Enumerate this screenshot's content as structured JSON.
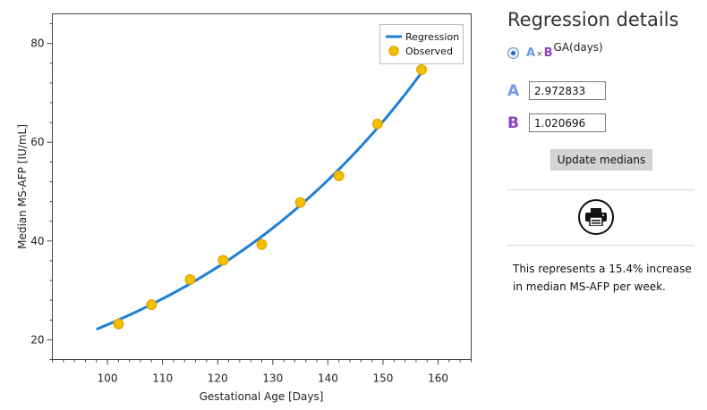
{
  "chart_data": {
    "type": "scatter",
    "xlabel": "Gestational Age [Days]",
    "ylabel": "Median MS-AFP [IU/mL]",
    "xlim": [
      90,
      166
    ],
    "ylim": [
      16,
      86
    ],
    "x_ticks": [
      100,
      110,
      120,
      130,
      140,
      150,
      160
    ],
    "y_ticks": [
      20,
      40,
      60,
      80
    ],
    "legend_position": "top-right",
    "series": [
      {
        "name": "Regression",
        "kind": "line",
        "color": "#1e7fd8",
        "model": "A*B^x",
        "x_range": [
          98,
          157
        ],
        "A": 2.972833,
        "B": 1.020696
      },
      {
        "name": "Observed",
        "kind": "scatter",
        "color": "#f2c200",
        "points": [
          [
            102,
            23.2
          ],
          [
            108,
            27.1
          ],
          [
            115,
            32.2
          ],
          [
            121,
            36.1
          ],
          [
            128,
            39.3
          ],
          [
            135,
            47.8
          ],
          [
            142,
            53.2
          ],
          [
            149,
            63.7
          ],
          [
            157,
            74.7
          ]
        ]
      }
    ]
  },
  "panel": {
    "title": "Regression details",
    "formula": {
      "a": "A",
      "times": "×",
      "b": "B",
      "exponent": "GA(days)"
    },
    "param_a": {
      "label": "A",
      "value": "2.972833",
      "color": "#6f9ae6"
    },
    "param_b": {
      "label": "B",
      "value": "1.020696",
      "color": "#8e3fc2"
    },
    "update_label": "Update medians",
    "print_icon": "printer-icon",
    "summary": "This represents a 15.4% increase in median MS-AFP per week."
  }
}
